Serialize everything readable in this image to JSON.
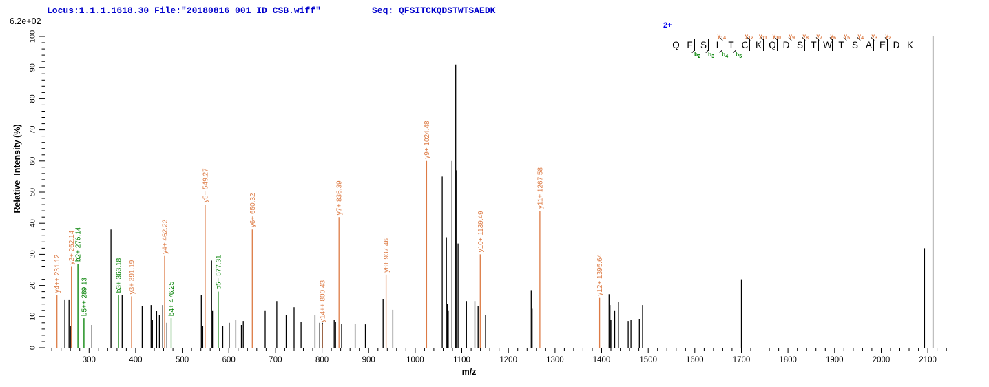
{
  "header": {
    "locus_file": "Locus:1.1.1.1618.30 File:\"20180816_001_ID_CSB.wiff\"",
    "seq_label": "Seq: QFSITCKQDSTWTSAEDK",
    "max_intensity": "6.2e+02"
  },
  "sequence_panel": {
    "charge": "2+",
    "residues": [
      "Q",
      "F",
      "S",
      "I",
      "T",
      "C",
      "K",
      "Q",
      "D",
      "S",
      "T",
      "W",
      "T",
      "S",
      "A",
      "E",
      "D",
      "K"
    ],
    "y_marks": [
      {
        "after": 4,
        "ion": "y",
        "num": "14"
      },
      {
        "after": 6,
        "ion": "y",
        "num": "12"
      },
      {
        "after": 7,
        "ion": "y",
        "num": "11"
      },
      {
        "after": 8,
        "ion": "y",
        "num": "10"
      },
      {
        "after": 9,
        "ion": "y",
        "num": "9"
      },
      {
        "after": 10,
        "ion": "y",
        "num": "8"
      },
      {
        "after": 11,
        "ion": "y",
        "num": "7"
      },
      {
        "after": 12,
        "ion": "y",
        "num": "6"
      },
      {
        "after": 13,
        "ion": "y",
        "num": "5"
      },
      {
        "after": 14,
        "ion": "y",
        "num": "4"
      },
      {
        "after": 15,
        "ion": "y",
        "num": "3"
      },
      {
        "after": 16,
        "ion": "y",
        "num": "2"
      }
    ],
    "b_marks": [
      {
        "after": 2,
        "ion": "b",
        "num": "2"
      },
      {
        "after": 3,
        "ion": "b",
        "num": "3"
      },
      {
        "after": 4,
        "ion": "b",
        "num": "4"
      },
      {
        "after": 5,
        "ion": "b",
        "num": "5"
      }
    ]
  },
  "chart_data": {
    "type": "bar",
    "subtype": "ms2-fragment-spectrum",
    "title": "",
    "xlabel": "m/z",
    "ylabel": "Relative  Intensity (%)",
    "xlim": [
      205,
      2156
    ],
    "ylim": [
      0,
      100
    ],
    "x_major_tick_start": 300,
    "x_major_tick_step": 100,
    "x_major_tick_end": 2100,
    "x_minor_tick_step": 20,
    "y_major_tick_step": 10,
    "y_minor_tick_step": 2,
    "grid": "off",
    "colors": {
      "y_ion": "#DD7B45",
      "b_ion": "#008000",
      "peak": "#000000",
      "header_text": "#0000CC",
      "charge_text": "#0000EE"
    },
    "annotated_peaks": [
      {
        "label": "y4++ 231.12",
        "mz": 231.12,
        "intensity": 17,
        "ion": "y"
      },
      {
        "label": "y2+ 262.14",
        "mz": 262.14,
        "intensity": 26,
        "ion": "y"
      },
      {
        "label": "b2+ 276.14",
        "mz": 276.14,
        "intensity": 27,
        "ion": "b"
      },
      {
        "label": "b5++ 289.13",
        "mz": 289.13,
        "intensity": 9.5,
        "ion": "b"
      },
      {
        "label": "b3+ 363.18",
        "mz": 363.18,
        "intensity": 17,
        "ion": "b"
      },
      {
        "label": "y3+ 391.19",
        "mz": 391.19,
        "intensity": 16.5,
        "ion": "y"
      },
      {
        "label": "y4+ 462.22",
        "mz": 462.22,
        "intensity": 29.5,
        "ion": "y"
      },
      {
        "label": "b4+ 476.25",
        "mz": 476.25,
        "intensity": 9.5,
        "ion": "b"
      },
      {
        "label": "y5+ 549.27",
        "mz": 549.27,
        "intensity": 46,
        "ion": "y"
      },
      {
        "label": "b5+ 577.31",
        "mz": 577.31,
        "intensity": 18,
        "ion": "b"
      },
      {
        "label": "y6+ 650.32",
        "mz": 650.32,
        "intensity": 38,
        "ion": "y"
      },
      {
        "label": "y14++ 800.43",
        "mz": 800.43,
        "intensity": 7.5,
        "ion": "y"
      },
      {
        "label": "y7+ 836.39",
        "mz": 836.39,
        "intensity": 42,
        "ion": "y"
      },
      {
        "label": "y8+ 937.46",
        "mz": 937.46,
        "intensity": 23.5,
        "ion": "y"
      },
      {
        "label": "y9+ 1024.48",
        "mz": 1024.48,
        "intensity": 60,
        "ion": "y"
      },
      {
        "label": "y10+ 1139.49",
        "mz": 1139.49,
        "intensity": 30,
        "ion": "y"
      },
      {
        "label": "y11+ 1267.58",
        "mz": 1267.58,
        "intensity": 44,
        "ion": "y"
      },
      {
        "label": "y12+ 1395.64",
        "mz": 1395.64,
        "intensity": 16,
        "ion": "y"
      }
    ],
    "unannotated_peaks": [
      [
        248,
        15.5
      ],
      [
        257,
        15.5
      ],
      [
        260,
        7
      ],
      [
        306,
        7.3
      ],
      [
        347,
        38
      ],
      [
        371,
        17
      ],
      [
        414,
        13.5
      ],
      [
        433,
        13.7
      ],
      [
        436,
        9
      ],
      [
        445,
        11.8
      ],
      [
        451,
        10.6
      ],
      [
        458,
        13.7
      ],
      [
        467,
        8
      ],
      [
        541,
        17
      ],
      [
        544,
        7
      ],
      [
        563,
        28
      ],
      [
        565,
        12
      ],
      [
        587,
        7
      ],
      [
        601,
        8
      ],
      [
        615,
        9
      ],
      [
        627,
        7.3
      ],
      [
        631,
        8.6
      ],
      [
        678,
        12
      ],
      [
        703,
        15
      ],
      [
        723,
        10.4
      ],
      [
        740,
        13
      ],
      [
        755,
        8.4
      ],
      [
        785,
        10.4
      ],
      [
        795,
        8
      ],
      [
        801,
        8
      ],
      [
        826,
        9
      ],
      [
        829,
        8.4
      ],
      [
        842,
        7.7
      ],
      [
        871,
        7.7
      ],
      [
        893,
        7.5
      ],
      [
        931,
        15.7
      ],
      [
        952,
        12.2
      ],
      [
        1058,
        55
      ],
      [
        1067,
        35.5
      ],
      [
        1069,
        14
      ],
      [
        1071,
        12
      ],
      [
        1079,
        60
      ],
      [
        1087,
        91
      ],
      [
        1089,
        57
      ],
      [
        1092,
        33.5
      ],
      [
        1110,
        15
      ],
      [
        1128,
        15
      ],
      [
        1135,
        13.5
      ],
      [
        1151,
        10.5
      ],
      [
        1249,
        18.5
      ],
      [
        1251,
        12.5
      ],
      [
        1416,
        17.2
      ],
      [
        1418,
        13.7
      ],
      [
        1420,
        9
      ],
      [
        1428,
        12
      ],
      [
        1436,
        14.8
      ],
      [
        1457,
        8.6
      ],
      [
        1463,
        9
      ],
      [
        1481,
        9.3
      ],
      [
        1488,
        13.7
      ],
      [
        1700,
        22
      ],
      [
        2093,
        32
      ],
      [
        2111,
        100
      ]
    ]
  }
}
